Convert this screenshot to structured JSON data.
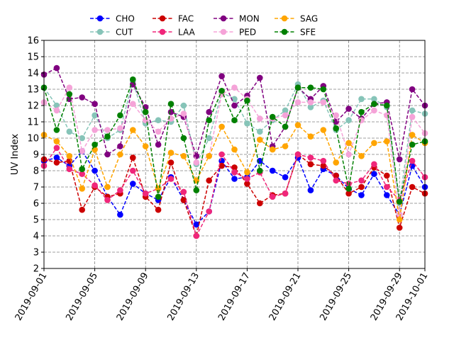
{
  "chart_data": {
    "type": "line",
    "title": "",
    "xlabel": "",
    "ylabel": "UV Index",
    "ylim": [
      2,
      16
    ],
    "xlim": [
      "2019-09-01",
      "2019-10-01"
    ],
    "grid": true,
    "grid_style": "dashed",
    "legend_position": "top, above plot, 5 columns",
    "yticks": [
      "2",
      "3",
      "4",
      "5",
      "6",
      "7",
      "8",
      "9",
      "10",
      "11",
      "12",
      "13",
      "14",
      "15",
      "16"
    ],
    "xticks": [
      "2019-09-01",
      "2019-09-05",
      "2019-09-09",
      "2019-09-13",
      "2019-09-17",
      "2019-09-21",
      "2019-09-25",
      "2019-09-29",
      "2019-10-01"
    ],
    "x": [
      "2019-09-01",
      "2019-09-02",
      "2019-09-03",
      "2019-09-04",
      "2019-09-05",
      "2019-09-06",
      "2019-09-07",
      "2019-09-08",
      "2019-09-09",
      "2019-09-10",
      "2019-09-11",
      "2019-09-12",
      "2019-09-13",
      "2019-09-14",
      "2019-09-15",
      "2019-09-16",
      "2019-09-17",
      "2019-09-18",
      "2019-09-19",
      "2019-09-20",
      "2019-09-21",
      "2019-09-22",
      "2019-09-23",
      "2019-09-24",
      "2019-09-25",
      "2019-09-26",
      "2019-09-27",
      "2019-09-28",
      "2019-09-29",
      "2019-09-30",
      "2019-10-01"
    ],
    "series": [
      {
        "name": "CHO",
        "color": "#0000ff",
        "values": [
          8.6,
          8.8,
          8.3,
          9.2,
          8.0,
          6.4,
          5.3,
          7.2,
          6.6,
          6.2,
          7.6,
          6.2,
          4.7,
          5.5,
          8.6,
          7.5,
          7.6,
          8.6,
          8.0,
          7.6,
          8.8,
          6.8,
          8.1,
          7.7,
          6.9,
          6.5,
          7.8,
          6.5,
          5.3,
          8.3,
          7.0
        ]
      },
      {
        "name": "CUT",
        "color": "#86c4b8",
        "values": [
          13.1,
          12.0,
          10.4,
          10.0,
          11.4,
          10.0,
          10.5,
          13.5,
          10.9,
          11.1,
          11.0,
          12.0,
          8.4,
          10.0,
          12.8,
          12.4,
          10.9,
          10.4,
          11.1,
          11.7,
          13.3,
          11.9,
          12.3,
          10.5,
          11.1,
          12.4,
          12.4,
          11.9,
          6.0,
          11.7,
          11.5
        ]
      },
      {
        "name": "FAC",
        "color": "#cc0000",
        "values": [
          8.7,
          8.5,
          8.6,
          5.6,
          7.0,
          6.4,
          6.6,
          8.8,
          6.4,
          5.6,
          8.5,
          6.2,
          4.0,
          7.4,
          8.3,
          8.2,
          7.2,
          6.0,
          6.5,
          6.6,
          9.0,
          8.4,
          8.3,
          7.7,
          6.6,
          7.0,
          8.2,
          7.7,
          4.5,
          7.0,
          6.6
        ]
      },
      {
        "name": "LAA",
        "color": "#f0267a",
        "values": [
          8.3,
          9.4,
          8.1,
          7.8,
          7.1,
          6.2,
          6.8,
          8.0,
          6.6,
          6.9,
          7.5,
          6.7,
          4.0,
          5.5,
          9.0,
          7.9,
          7.5,
          7.9,
          6.4,
          6.6,
          9.0,
          8.8,
          8.6,
          7.4,
          7.2,
          7.4,
          8.4,
          7.0,
          6.2,
          8.6,
          7.6
        ]
      },
      {
        "name": "MON",
        "color": "#800080",
        "values": [
          13.9,
          14.3,
          12.4,
          12.5,
          12.1,
          9.0,
          9.5,
          13.3,
          11.9,
          9.6,
          11.6,
          11.3,
          8.9,
          11.6,
          13.8,
          12.0,
          12.6,
          13.7,
          9.5,
          10.7,
          13.1,
          12.4,
          13.2,
          11.0,
          11.8,
          11.2,
          12.1,
          12.2,
          8.7,
          13.0,
          12.0
        ]
      },
      {
        "name": "PED",
        "color": "#f5a3d8",
        "values": [
          12.2,
          11.7,
          13.1,
          9.2,
          10.5,
          10.5,
          10.6,
          12.1,
          11.1,
          10.4,
          11.2,
          11.5,
          8.5,
          8.9,
          12.7,
          13.1,
          12.4,
          11.2,
          11.2,
          11.4,
          12.2,
          12.2,
          12.2,
          11.4,
          9.0,
          11.1,
          11.7,
          11.4,
          5.3,
          11.3,
          10.3
        ]
      },
      {
        "name": "SAG",
        "color": "#ffa500",
        "values": [
          10.2,
          9.8,
          8.9,
          6.9,
          9.3,
          7.0,
          9.0,
          10.5,
          9.5,
          6.9,
          9.1,
          8.9,
          7.4,
          8.9,
          10.7,
          9.3,
          7.9,
          9.9,
          9.3,
          9.5,
          10.8,
          10.1,
          10.5,
          8.5,
          9.7,
          8.9,
          9.7,
          9.8,
          5.0,
          10.2,
          9.7
        ]
      },
      {
        "name": "SFE",
        "color": "#008000",
        "values": [
          13.1,
          10.5,
          12.7,
          8.1,
          9.6,
          10.1,
          11.4,
          13.6,
          11.6,
          6.4,
          12.1,
          10.0,
          6.8,
          11.1,
          12.9,
          11.1,
          12.3,
          8.0,
          11.3,
          10.7,
          13.1,
          13.1,
          13.0,
          10.6,
          6.9,
          11.6,
          12.1,
          12.0,
          6.1,
          9.6,
          9.8
        ]
      }
    ]
  }
}
